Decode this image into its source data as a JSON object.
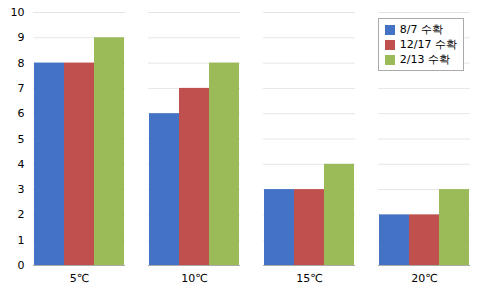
{
  "chart_data": {
    "type": "bar",
    "categories": [
      "5℃",
      "10℃",
      "15℃",
      "20℃"
    ],
    "series": [
      {
        "name": "8/7 수확",
        "color": "#4472C4",
        "values": [
          8,
          6,
          3,
          2
        ]
      },
      {
        "name": "12/17 수확",
        "color": "#C0504D",
        "values": [
          8,
          7,
          3,
          2
        ]
      },
      {
        "name": "2/13 수확",
        "color": "#9BBB59",
        "values": [
          9,
          8,
          4,
          3
        ]
      }
    ],
    "ylim": [
      0,
      10
    ],
    "yticks": [
      0,
      1,
      2,
      3,
      4,
      5,
      6,
      7,
      8,
      9,
      10
    ],
    "grid": true,
    "legend": "upper right"
  }
}
